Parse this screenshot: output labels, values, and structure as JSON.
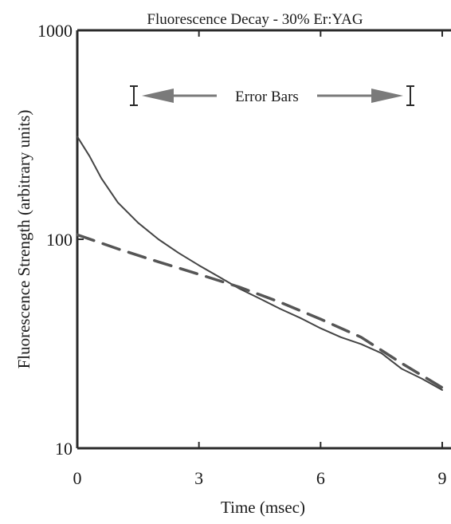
{
  "chart_data": {
    "type": "line",
    "title": "Fluorescence Decay - 30% Er:YAG",
    "xlabel": "Time (msec)",
    "ylabel": "Fluorescence Strength (arbitrary units)",
    "xlim": [
      0,
      9
    ],
    "ylim": [
      10,
      1000
    ],
    "yscale": "log",
    "x_ticks": [
      0,
      3,
      6,
      9
    ],
    "y_ticks": [
      10,
      100,
      1000
    ],
    "x_tick_labels": [
      "0",
      "3",
      "6",
      "9"
    ],
    "y_tick_labels": [
      "10",
      "100",
      "1000"
    ],
    "grid": false,
    "series": [
      {
        "style": "solid",
        "color": "#444444",
        "x": [
          0,
          0.3,
          0.6,
          1.0,
          1.5,
          2.0,
          2.5,
          3.0,
          3.5,
          4.0,
          4.5,
          5.0,
          5.5,
          6.0,
          6.5,
          7.0,
          7.5,
          8.0,
          8.5,
          9.0
        ],
        "y": [
          310,
          250,
          195,
          150,
          120,
          100,
          86,
          75,
          66,
          58,
          52,
          46.5,
          42,
          37.5,
          34,
          31.5,
          28.5,
          24,
          21.5,
          19
        ]
      },
      {
        "style": "dashed",
        "color": "#555555",
        "x": [
          0,
          1,
          2,
          3,
          4,
          5,
          6,
          7,
          8,
          9
        ],
        "y": [
          105,
          90,
          78,
          68,
          59,
          50,
          41.5,
          34,
          25.5,
          19.5
        ]
      }
    ],
    "annotations": [
      {
        "text": "Error Bars",
        "type": "double-arrow"
      }
    ]
  },
  "colors": {
    "axis": "#2a2a2a",
    "line": "#3a3a3a",
    "annotation": "#7a7a7a"
  }
}
